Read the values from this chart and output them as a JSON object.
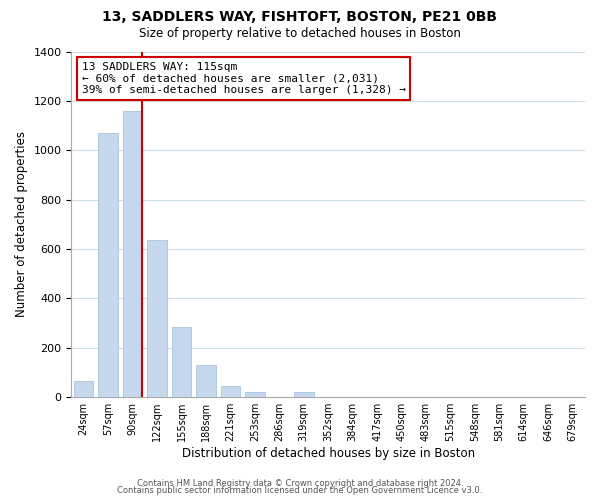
{
  "title": "13, SADDLERS WAY, FISHTOFT, BOSTON, PE21 0BB",
  "subtitle": "Size of property relative to detached houses in Boston",
  "xlabel": "Distribution of detached houses by size in Boston",
  "ylabel": "Number of detached properties",
  "bar_labels": [
    "24sqm",
    "57sqm",
    "90sqm",
    "122sqm",
    "155sqm",
    "188sqm",
    "221sqm",
    "253sqm",
    "286sqm",
    "319sqm",
    "352sqm",
    "384sqm",
    "417sqm",
    "450sqm",
    "483sqm",
    "515sqm",
    "548sqm",
    "581sqm",
    "614sqm",
    "646sqm",
    "679sqm"
  ],
  "bar_heights": [
    65,
    1070,
    1160,
    635,
    285,
    130,
    47,
    20,
    0,
    20,
    0,
    0,
    0,
    0,
    0,
    0,
    0,
    0,
    0,
    0,
    0
  ],
  "bar_color": "#c5d8ed",
  "bar_edge_color": "#a8c4de",
  "vline_color": "#cc0000",
  "ylim": [
    0,
    1400
  ],
  "yticks": [
    0,
    200,
    400,
    600,
    800,
    1000,
    1200,
    1400
  ],
  "annotation_title": "13 SADDLERS WAY: 115sqm",
  "annotation_line1": "← 60% of detached houses are smaller (2,031)",
  "annotation_line2": "39% of semi-detached houses are larger (1,328) →",
  "footer1": "Contains HM Land Registry data © Crown copyright and database right 2024.",
  "footer2": "Contains public sector information licensed under the Open Government Licence v3.0.",
  "background_color": "#ffffff",
  "grid_color": "#ccdde8"
}
